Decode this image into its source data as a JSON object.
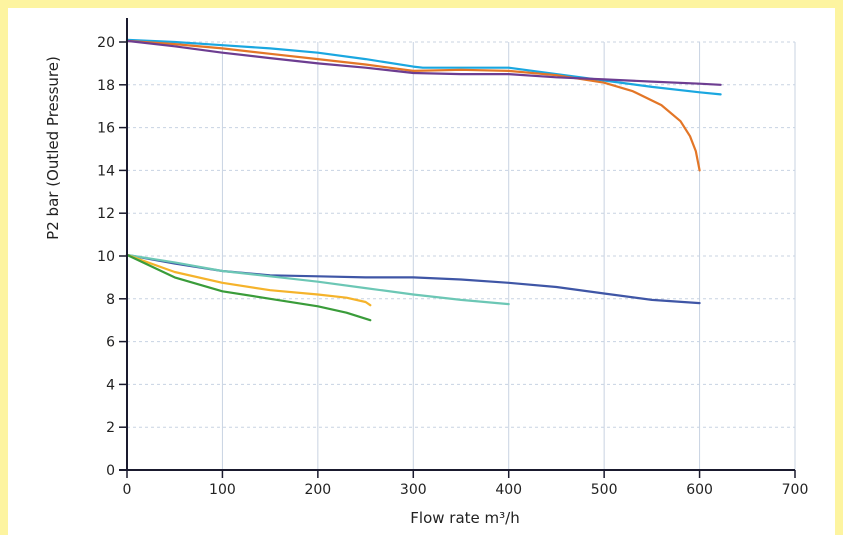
{
  "colors": {
    "frame": "#fdf4a0",
    "grid": "#c8d3e2",
    "axis": "#1a1a2e"
  },
  "chart_data": {
    "type": "line",
    "xlabel": "Flow rate m³/h",
    "ylabel": "P2 bar (Outled Pressure)",
    "xlim": [
      0,
      700
    ],
    "ylim": [
      0,
      20
    ],
    "xticks": [
      0,
      100,
      200,
      300,
      400,
      500,
      600,
      700
    ],
    "yticks": [
      0,
      2,
      4,
      6,
      8,
      10,
      12,
      14,
      16,
      18,
      20
    ],
    "grid": true,
    "series": [
      {
        "color": "#1aa7e0",
        "points": [
          [
            0,
            20.1
          ],
          [
            50,
            20.0
          ],
          [
            100,
            19.85
          ],
          [
            150,
            19.7
          ],
          [
            200,
            19.5
          ],
          [
            250,
            19.2
          ],
          [
            300,
            18.85
          ],
          [
            310,
            18.8
          ],
          [
            350,
            18.8
          ],
          [
            400,
            18.8
          ],
          [
            450,
            18.5
          ],
          [
            500,
            18.2
          ],
          [
            550,
            17.9
          ],
          [
            600,
            17.65
          ],
          [
            622,
            17.55
          ]
        ]
      },
      {
        "color": "#e37627",
        "points": [
          [
            0,
            20.05
          ],
          [
            50,
            19.9
          ],
          [
            100,
            19.7
          ],
          [
            150,
            19.45
          ],
          [
            200,
            19.2
          ],
          [
            250,
            18.95
          ],
          [
            300,
            18.65
          ],
          [
            350,
            18.7
          ],
          [
            400,
            18.65
          ],
          [
            450,
            18.45
          ],
          [
            500,
            18.1
          ],
          [
            530,
            17.7
          ],
          [
            560,
            17.05
          ],
          [
            580,
            16.3
          ],
          [
            590,
            15.6
          ],
          [
            596,
            14.9
          ],
          [
            600,
            14.0
          ]
        ]
      },
      {
        "color": "#6d3d91",
        "points": [
          [
            0,
            20.05
          ],
          [
            50,
            19.8
          ],
          [
            100,
            19.5
          ],
          [
            150,
            19.25
          ],
          [
            200,
            19.0
          ],
          [
            250,
            18.8
          ],
          [
            300,
            18.55
          ],
          [
            350,
            18.5
          ],
          [
            400,
            18.5
          ],
          [
            450,
            18.35
          ],
          [
            500,
            18.25
          ],
          [
            550,
            18.15
          ],
          [
            600,
            18.05
          ],
          [
            622,
            18.0
          ]
        ]
      },
      {
        "color": "#3f56a6",
        "points": [
          [
            0,
            10.05
          ],
          [
            50,
            9.65
          ],
          [
            100,
            9.3
          ],
          [
            150,
            9.1
          ],
          [
            200,
            9.05
          ],
          [
            250,
            9.0
          ],
          [
            300,
            9.0
          ],
          [
            350,
            8.9
          ],
          [
            400,
            8.75
          ],
          [
            450,
            8.55
          ],
          [
            500,
            8.25
          ],
          [
            550,
            7.95
          ],
          [
            600,
            7.8
          ]
        ]
      },
      {
        "color": "#6cc7b5",
        "points": [
          [
            0,
            10.05
          ],
          [
            50,
            9.7
          ],
          [
            100,
            9.3
          ],
          [
            150,
            9.05
          ],
          [
            200,
            8.8
          ],
          [
            250,
            8.5
          ],
          [
            300,
            8.2
          ],
          [
            350,
            7.95
          ],
          [
            400,
            7.75
          ]
        ]
      },
      {
        "color": "#f5b32b",
        "points": [
          [
            0,
            10.05
          ],
          [
            50,
            9.25
          ],
          [
            100,
            8.75
          ],
          [
            150,
            8.4
          ],
          [
            200,
            8.2
          ],
          [
            230,
            8.05
          ],
          [
            250,
            7.85
          ],
          [
            255,
            7.7
          ]
        ]
      },
      {
        "color": "#3a9c3a",
        "points": [
          [
            0,
            10.05
          ],
          [
            50,
            9.0
          ],
          [
            100,
            8.35
          ],
          [
            150,
            8.0
          ],
          [
            200,
            7.65
          ],
          [
            230,
            7.35
          ],
          [
            255,
            7.0
          ]
        ]
      }
    ]
  }
}
